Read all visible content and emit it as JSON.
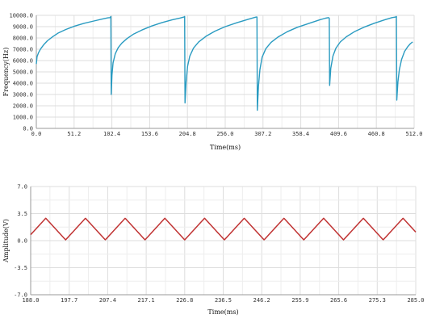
{
  "chart_data": [
    {
      "type": "line",
      "title": "",
      "xlabel": "Time(ms)",
      "ylabel": "Frequency(Hz)",
      "xlim": [
        0,
        512
      ],
      "ylim": [
        0,
        10000
      ],
      "x_ticks": [
        "0.0",
        "51.2",
        "102.4",
        "153.6",
        "204.8",
        "256.0",
        "307.2",
        "358.4",
        "409.6",
        "460.8",
        "512.0"
      ],
      "y_ticks": [
        "0.0",
        "1000.0",
        "2000.0",
        "3000.0",
        "4000.0",
        "5000.0",
        "6000.0",
        "7000.0",
        "8000.0",
        "9000.0",
        "10000.0"
      ],
      "grid": true,
      "color": "#2a9bc1",
      "series": [
        {
          "points": [
            [
              0,
              5700
            ],
            [
              1,
              6350
            ],
            [
              3,
              6700
            ],
            [
              6,
              7050
            ],
            [
              10,
              7400
            ],
            [
              15,
              7750
            ],
            [
              22,
              8100
            ],
            [
              30,
              8450
            ],
            [
              40,
              8750
            ],
            [
              52,
              9050
            ],
            [
              65,
              9300
            ],
            [
              78,
              9500
            ],
            [
              90,
              9680
            ],
            [
              97,
              9780
            ],
            [
              100,
              9800
            ],
            [
              101,
              9900
            ],
            [
              101.5,
              3000
            ],
            [
              102.5,
              4700
            ],
            [
              104,
              5800
            ],
            [
              107,
              6600
            ],
            [
              111,
              7150
            ],
            [
              116,
              7550
            ],
            [
              123,
              7950
            ],
            [
              132,
              8350
            ],
            [
              143,
              8700
            ],
            [
              156,
              9050
            ],
            [
              170,
              9350
            ],
            [
              184,
              9600
            ],
            [
              195,
              9760
            ],
            [
              200,
              9850
            ],
            [
              201,
              9900
            ],
            [
              201.5,
              2250
            ],
            [
              203,
              4100
            ],
            [
              205,
              5500
            ],
            [
              208,
              6400
            ],
            [
              213,
              7100
            ],
            [
              220,
              7650
            ],
            [
              230,
              8150
            ],
            [
              242,
              8600
            ],
            [
              256,
              9000
            ],
            [
              272,
              9350
            ],
            [
              287,
              9650
            ],
            [
              295,
              9800
            ],
            [
              298,
              9850
            ],
            [
              299,
              9850
            ],
            [
              299.5,
              1600
            ],
            [
              301,
              3700
            ],
            [
              303,
              5200
            ],
            [
              306,
              6300
            ],
            [
              311,
              7050
            ],
            [
              318,
              7600
            ],
            [
              328,
              8100
            ],
            [
              340,
              8550
            ],
            [
              354,
              8950
            ],
            [
              370,
              9300
            ],
            [
              384,
              9600
            ],
            [
              392,
              9750
            ],
            [
              396,
              9800
            ],
            [
              397,
              9750
            ],
            [
              397.5,
              3800
            ],
            [
              399,
              5300
            ],
            [
              402,
              6400
            ],
            [
              406,
              7100
            ],
            [
              412,
              7650
            ],
            [
              420,
              8100
            ],
            [
              431,
              8550
            ],
            [
              444,
              8950
            ],
            [
              458,
              9300
            ],
            [
              472,
              9600
            ],
            [
              482,
              9800
            ],
            [
              487,
              9850
            ],
            [
              488,
              9900
            ],
            [
              488.5,
              2500
            ],
            [
              490,
              4100
            ],
            [
              492,
              5200
            ],
            [
              495,
              6100
            ],
            [
              499,
              6800
            ],
            [
              503,
              7200
            ],
            [
              507,
              7500
            ],
            [
              510,
              7650
            ]
          ]
        }
      ]
    },
    {
      "type": "line",
      "title": "",
      "xlabel": "Time(ms)",
      "ylabel": "Amplitude(V)",
      "xlim": [
        188.0,
        285.0
      ],
      "ylim": [
        -7.0,
        7.0
      ],
      "x_ticks": [
        "188.0",
        "197.7",
        "207.4",
        "217.1",
        "226.8",
        "236.5",
        "246.2",
        "255.9",
        "265.6",
        "275.3",
        "285.0"
      ],
      "y_ticks": [
        "-7.0",
        "-3.5",
        "0.0",
        "3.5",
        "7.0"
      ],
      "grid": true,
      "color": "#c03333",
      "waveform": "triangle",
      "period_ms": 10.0,
      "min_v": 0.1,
      "max_v": 2.9,
      "first_peak_ms": 191.8
    }
  ]
}
